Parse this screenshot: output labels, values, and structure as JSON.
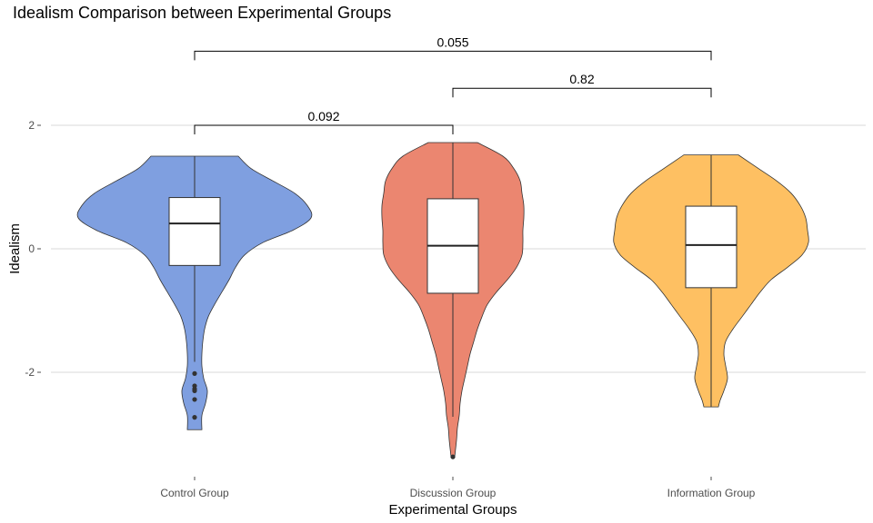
{
  "chart_data": {
    "type": "violin",
    "title": "Idealism Comparison between Experimental Groups",
    "xlabel": "Experimental Groups",
    "ylabel": "Idealism",
    "ylim": [
      -3.55,
      3.3
    ],
    "yticks": [
      2,
      0,
      -2
    ],
    "ytick_labels": [
      "2",
      "0",
      "-2"
    ],
    "grid": "horizontal major lines only",
    "groups": [
      {
        "name": "Control Group",
        "color": "#7f9fe0",
        "min": -2.93,
        "max": 1.5,
        "q1": -0.27,
        "median": 0.41,
        "q3": 0.83,
        "whisker_low": -1.83,
        "whisker_high": 1.5,
        "outliers": [
          -2.02,
          -2.22,
          -2.27,
          -2.3,
          -2.44,
          -2.73
        ],
        "density": [
          [
            1.5,
            48
          ],
          [
            1.3,
            62
          ],
          [
            1.1,
            86
          ],
          [
            0.9,
            110
          ],
          [
            0.7,
            124
          ],
          [
            0.5,
            128
          ],
          [
            0.3,
            108
          ],
          [
            0.1,
            75
          ],
          [
            -0.1,
            55
          ],
          [
            -0.3,
            45
          ],
          [
            -0.5,
            38
          ],
          [
            -0.7,
            30
          ],
          [
            -0.9,
            22
          ],
          [
            -1.1,
            15
          ],
          [
            -1.3,
            11
          ],
          [
            -1.5,
            9
          ],
          [
            -1.7,
            8
          ],
          [
            -1.9,
            8
          ],
          [
            -2.1,
            10
          ],
          [
            -2.3,
            14
          ],
          [
            -2.5,
            12
          ],
          [
            -2.7,
            8
          ],
          [
            -2.93,
            8
          ]
        ]
      },
      {
        "name": "Discussion Group",
        "color": "#eb8670",
        "min": -3.37,
        "max": 1.72,
        "q1": -0.72,
        "median": 0.05,
        "q3": 0.81,
        "whisker_low": -2.72,
        "whisker_high": 1.72,
        "outliers": [
          -3.37
        ],
        "density": [
          [
            1.72,
            27
          ],
          [
            1.5,
            55
          ],
          [
            1.3,
            67
          ],
          [
            1.1,
            74
          ],
          [
            0.9,
            76
          ],
          [
            0.7,
            78
          ],
          [
            0.5,
            78
          ],
          [
            0.3,
            77
          ],
          [
            0.1,
            77
          ],
          [
            -0.1,
            76
          ],
          [
            -0.3,
            70
          ],
          [
            -0.5,
            60
          ],
          [
            -0.7,
            48
          ],
          [
            -0.9,
            38
          ],
          [
            -1.1,
            32
          ],
          [
            -1.3,
            27
          ],
          [
            -1.5,
            23
          ],
          [
            -1.7,
            19
          ],
          [
            -1.9,
            16
          ],
          [
            -2.1,
            13
          ],
          [
            -2.3,
            10
          ],
          [
            -2.5,
            8
          ],
          [
            -2.7,
            7
          ],
          [
            -2.9,
            5
          ],
          [
            -3.1,
            4
          ],
          [
            -3.37,
            2
          ]
        ]
      },
      {
        "name": "Information Group",
        "color": "#fec062",
        "min": -2.56,
        "max": 1.52,
        "q1": -0.63,
        "median": 0.06,
        "q3": 0.69,
        "whisker_low": -2.56,
        "whisker_high": 1.52,
        "outliers": [],
        "density": [
          [
            1.52,
            30
          ],
          [
            1.3,
            52
          ],
          [
            1.1,
            72
          ],
          [
            0.9,
            88
          ],
          [
            0.7,
            98
          ],
          [
            0.5,
            104
          ],
          [
            0.3,
            106
          ],
          [
            0.1,
            107
          ],
          [
            -0.1,
            100
          ],
          [
            -0.3,
            84
          ],
          [
            -0.5,
            66
          ],
          [
            -0.7,
            54
          ],
          [
            -0.9,
            44
          ],
          [
            -1.1,
            34
          ],
          [
            -1.3,
            24
          ],
          [
            -1.5,
            16
          ],
          [
            -1.7,
            14
          ],
          [
            -1.9,
            16
          ],
          [
            -2.1,
            18
          ],
          [
            -2.3,
            14
          ],
          [
            -2.45,
            10
          ],
          [
            -2.56,
            8
          ]
        ]
      }
    ],
    "comparisons": [
      {
        "from": 0,
        "to": 1,
        "p": "0.092",
        "y": 2.0
      },
      {
        "from": 1,
        "to": 2,
        "p": "0.82",
        "y": 2.6
      },
      {
        "from": 0,
        "to": 2,
        "p": "0.055",
        "y": 3.2
      }
    ]
  }
}
